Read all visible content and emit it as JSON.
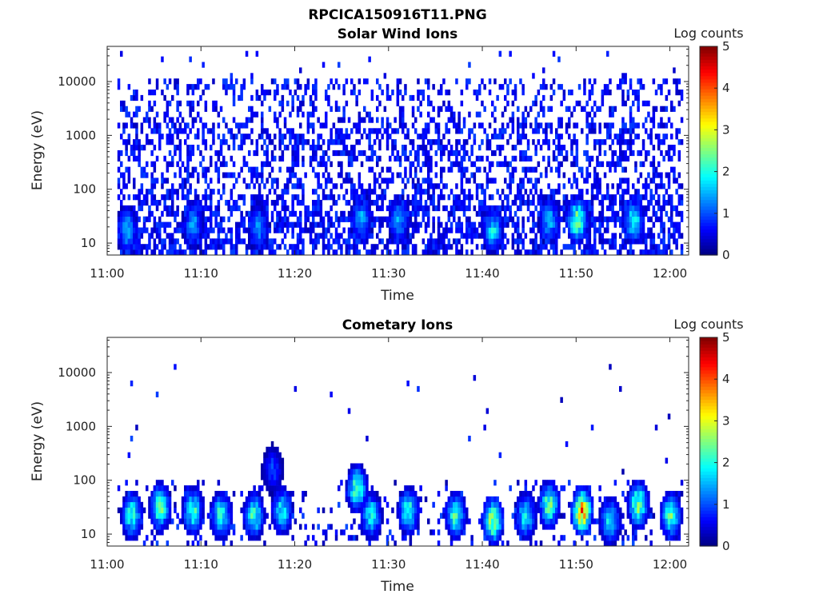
{
  "figure_title": "RPCICA150916T11.PNG",
  "chart_data": [
    {
      "type": "heatmap",
      "title": "Solar Wind Ions",
      "xlabel": "Time",
      "ylabel": "Energy (eV)",
      "x_ticks": [
        "11:00",
        "11:10",
        "11:20",
        "11:30",
        "11:40",
        "11:50",
        "12:00"
      ],
      "x_range": [
        "11:00",
        "12:02"
      ],
      "y_scale": "log",
      "y_ticks": [
        "10",
        "100",
        "1000",
        "10000"
      ],
      "y_range": [
        6,
        45000
      ],
      "colorbar": {
        "label": "Log counts",
        "range": [
          0,
          5
        ],
        "ticks": [
          "0",
          "1",
          "2",
          "3",
          "4",
          "5"
        ],
        "colormap": "jet"
      },
      "grid": false,
      "background": "dense noise at 1-2 log counts across all energies; brighter enhancements below 100 eV",
      "peaks": [
        {
          "time": "11:02",
          "energy_eV": 20,
          "log_counts": 1.6
        },
        {
          "time": "11:09",
          "energy_eV": 25,
          "log_counts": 1.5
        },
        {
          "time": "11:16",
          "energy_eV": 22,
          "log_counts": 1.5
        },
        {
          "time": "11:27",
          "energy_eV": 30,
          "log_counts": 1.6
        },
        {
          "time": "11:31",
          "energy_eV": 30,
          "log_counts": 1.5
        },
        {
          "time": "11:41",
          "energy_eV": 20,
          "log_counts": 1.8
        },
        {
          "time": "11:47",
          "energy_eV": 30,
          "log_counts": 1.6
        },
        {
          "time": "11:50",
          "energy_eV": 30,
          "log_counts": 2.6
        },
        {
          "time": "11:56",
          "energy_eV": 30,
          "log_counts": 2.0
        }
      ]
    },
    {
      "type": "heatmap",
      "title": "Cometary Ions",
      "xlabel": "Time",
      "ylabel": "Energy (eV)",
      "x_ticks": [
        "11:00",
        "11:10",
        "11:20",
        "11:30",
        "11:40",
        "11:50",
        "12:00"
      ],
      "x_range": [
        "11:00",
        "12:02"
      ],
      "y_scale": "log",
      "y_ticks": [
        "10",
        "100",
        "1000",
        "10000"
      ],
      "y_range": [
        6,
        45000
      ],
      "colorbar": {
        "label": "Log counts",
        "range": [
          0,
          5
        ],
        "ticks": [
          "0",
          "1",
          "2",
          "3",
          "4",
          "5"
        ],
        "colormap": "jet"
      },
      "grid": false,
      "background": "sparse noise, isolated points up to ~10000 eV",
      "bursts": [
        {
          "time": "11:02.5",
          "energy_eV": 25,
          "log_counts": 2.2
        },
        {
          "time": "11:05.5",
          "energy_eV": 35,
          "log_counts": 2.4
        },
        {
          "time": "11:09",
          "energy_eV": 30,
          "log_counts": 2.2
        },
        {
          "time": "11:12",
          "energy_eV": 25,
          "log_counts": 2.2
        },
        {
          "time": "11:15.5",
          "energy_eV": 25,
          "log_counts": 2.2
        },
        {
          "time": "11:17.5",
          "energy_eV": 180,
          "log_counts": 1.0
        },
        {
          "time": "11:18.5",
          "energy_eV": 30,
          "log_counts": 2.0
        },
        {
          "time": "11:26.5",
          "energy_eV": 80,
          "log_counts": 2.4
        },
        {
          "time": "11:28",
          "energy_eV": 25,
          "log_counts": 2.0
        },
        {
          "time": "11:32",
          "energy_eV": 30,
          "log_counts": 2.2
        },
        {
          "time": "11:37",
          "energy_eV": 25,
          "log_counts": 2.2
        },
        {
          "time": "11:41",
          "energy_eV": 20,
          "log_counts": 2.8
        },
        {
          "time": "11:44.5",
          "energy_eV": 25,
          "log_counts": 2.0
        },
        {
          "time": "11:47",
          "energy_eV": 40,
          "log_counts": 2.5
        },
        {
          "time": "11:50.5",
          "energy_eV": 30,
          "log_counts": 3.8
        },
        {
          "time": "11:53.5",
          "energy_eV": 20,
          "log_counts": 2.0
        },
        {
          "time": "11:56.5",
          "energy_eV": 40,
          "log_counts": 2.6
        },
        {
          "time": "12:00",
          "energy_eV": 25,
          "log_counts": 2.4
        }
      ]
    }
  ]
}
